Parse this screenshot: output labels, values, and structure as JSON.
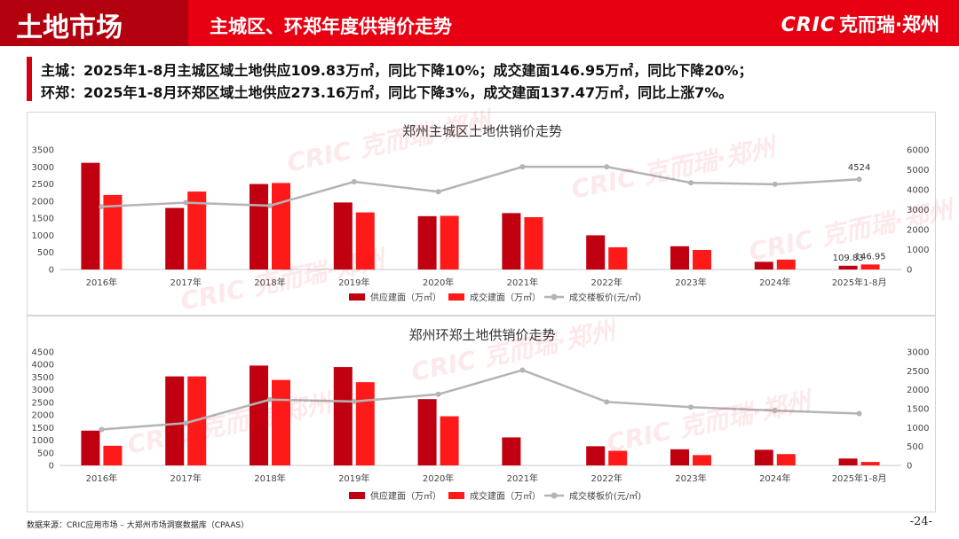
{
  "header": {
    "main_title": "土地市场",
    "sub_title": "主城区、环郑年度供销价走势",
    "brand_latin": "CRIC",
    "brand_cn": "克而瑞·郑州",
    "colors": {
      "primary": "#e60012",
      "dark": "#b3000e"
    }
  },
  "summary": {
    "line1": "主城：2025年1-8月主城区域土地供应109.83万㎡，同比下降10%；成交建面146.95万㎡，同比下降20%；",
    "line2": "环郑：2025年1-8月环郑区域土地供应273.16万㎡，同比下降3%，成交建面137.47万㎡，同比上涨7%。"
  },
  "watermark_text": "CRIC 克而瑞·郑州",
  "footer": {
    "source": "数据来源：CRIC应用市场 – 大郑州市场洞察数据库（CPAAS）",
    "page": "-24-"
  },
  "chart_data": [
    {
      "type": "bar",
      "title": "郑州主城区土地供销价走势",
      "categories": [
        "2016年",
        "2017年",
        "2018年",
        "2019年",
        "2020年",
        "2021年",
        "2022年",
        "2023年",
        "2024年",
        "2025年1-8月"
      ],
      "left_ticks": [
        "0",
        "500",
        "1000",
        "1500",
        "2000",
        "2500",
        "3000",
        "3500"
      ],
      "right_ticks": [
        "0",
        "1000",
        "2000",
        "3000",
        "4000",
        "5000",
        "6000"
      ],
      "ylim": [
        0,
        3500
      ],
      "y2lim": [
        0,
        6000
      ],
      "series": [
        {
          "name": "供应建面（万㎡）",
          "type": "bar",
          "axis": "left",
          "color": "#c00010",
          "values": [
            3120,
            1800,
            2500,
            1960,
            1560,
            1650,
            1000,
            680,
            225,
            109.83
          ]
        },
        {
          "name": "成交建面（万㎡）",
          "type": "bar",
          "axis": "left",
          "color": "#ff1a1a",
          "values": [
            2180,
            2280,
            2530,
            1670,
            1570,
            1530,
            650,
            570,
            290,
            146.95
          ]
        },
        {
          "name": "成交楼板价(元/㎡)",
          "type": "line",
          "axis": "right",
          "color": "#b4b4b4",
          "values": [
            3150,
            3350,
            3200,
            4400,
            3900,
            5150,
            5150,
            4350,
            4270,
            4524
          ]
        }
      ],
      "data_labels": [
        {
          "series": 0,
          "index": 9,
          "text": "109.83"
        },
        {
          "series": 1,
          "index": 9,
          "text": "146.95"
        },
        {
          "series": 2,
          "index": 9,
          "text": "4524"
        }
      ],
      "legend": "bottom",
      "grid": false
    },
    {
      "type": "bar",
      "title": "郑州环郑土地供销价走势",
      "categories": [
        "2016年",
        "2017年",
        "2018年",
        "2019年",
        "2020年",
        "2021年",
        "2022年",
        "2023年",
        "2024年",
        "2025年1-8月"
      ],
      "left_ticks": [
        "0",
        "500",
        "1000",
        "1500",
        "2000",
        "2500",
        "3000",
        "3500",
        "4000",
        "4500"
      ],
      "right_ticks": [
        "0",
        "500",
        "1000",
        "1500",
        "2000",
        "2500",
        "3000"
      ],
      "ylim": [
        0,
        4500
      ],
      "y2lim": [
        0,
        3000
      ],
      "series": [
        {
          "name": "供应建面（万㎡）",
          "type": "bar",
          "axis": "left",
          "color": "#c00010",
          "values": [
            1380,
            3530,
            3960,
            3900,
            2630,
            1110,
            760,
            640,
            620,
            273.16
          ]
        },
        {
          "name": "成交建面（万㎡）",
          "type": "bar",
          "axis": "left",
          "color": "#ff1a1a",
          "values": [
            780,
            3530,
            3390,
            3300,
            1950,
            0,
            580,
            410,
            450,
            137.47
          ]
        },
        {
          "name": "成交楼板价(元/㎡)",
          "type": "line",
          "axis": "right",
          "color": "#b4b4b4",
          "values": [
            950,
            1120,
            1740,
            1690,
            1880,
            2520,
            1680,
            1540,
            1450,
            1370
          ]
        }
      ],
      "data_labels": [],
      "legend": "bottom",
      "grid": false
    }
  ]
}
